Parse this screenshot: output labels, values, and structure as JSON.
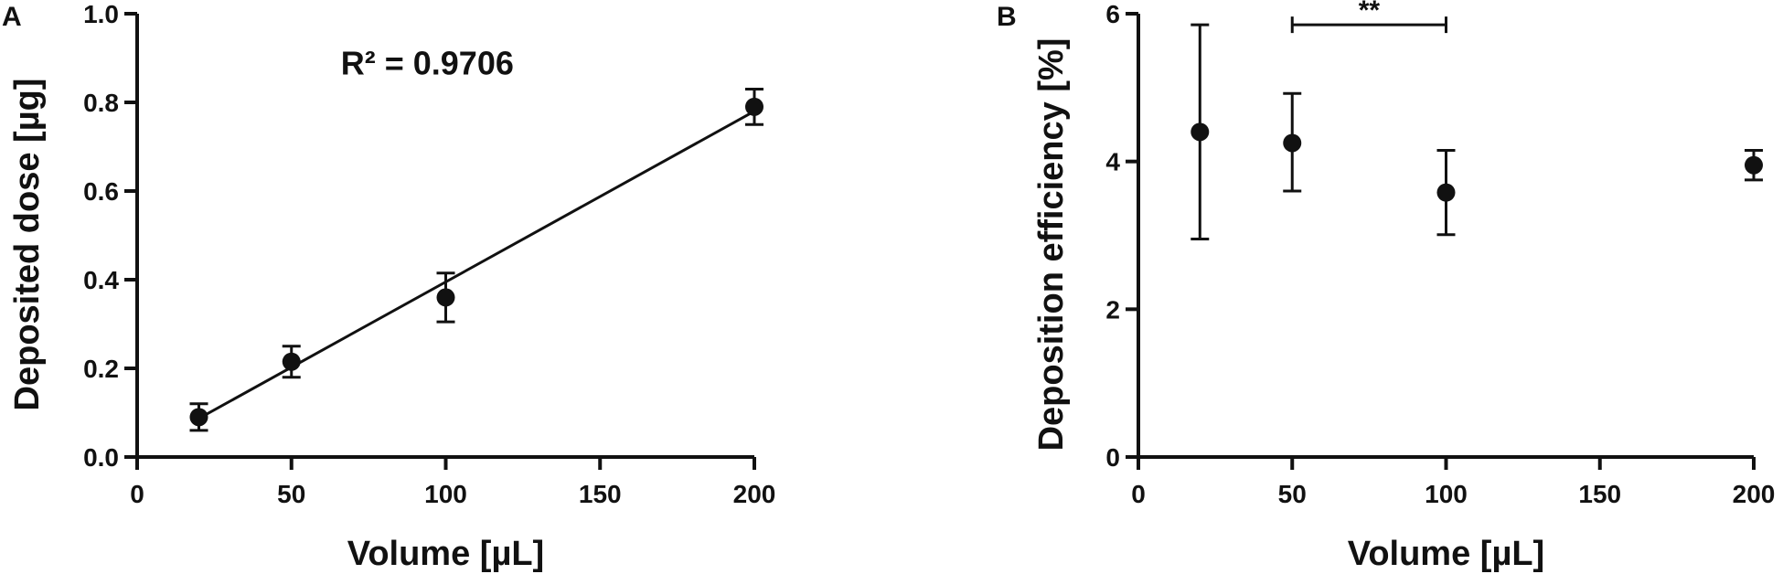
{
  "chart_data": [
    {
      "panel": "A",
      "type": "scatter",
      "xlabel": "Volume [µL]",
      "ylabel": "Deposited dose [µg]",
      "xlim": [
        0,
        200
      ],
      "ylim": [
        0,
        1.0
      ],
      "xticks": [
        "0",
        "50",
        "100",
        "150",
        "200"
      ],
      "yticks": [
        "0.0",
        "0.2",
        "0.4",
        "0.6",
        "0.8",
        "1.0"
      ],
      "points": [
        {
          "x": 20,
          "y": 0.09,
          "err": 0.03
        },
        {
          "x": 50,
          "y": 0.215,
          "err": 0.035
        },
        {
          "x": 100,
          "y": 0.36,
          "err": 0.055
        },
        {
          "x": 200,
          "y": 0.79,
          "err": 0.04
        }
      ],
      "fit_line": {
        "x": [
          20,
          200
        ],
        "y": [
          0.087,
          0.78
        ]
      },
      "annotation": "R² = 0.9706",
      "grid": false,
      "color": "#111111"
    },
    {
      "panel": "B",
      "type": "scatter",
      "xlabel": "Volume [µL]",
      "ylabel": "Deposition efficiency [%]",
      "xlim": [
        0,
        200
      ],
      "ylim": [
        0,
        6
      ],
      "xticks": [
        "0",
        "50",
        "100",
        "150",
        "200"
      ],
      "yticks": [
        "0",
        "2",
        "4",
        "6"
      ],
      "points": [
        {
          "x": 20,
          "y": 4.4,
          "err_low": 1.45,
          "err_high": 1.45
        },
        {
          "x": 50,
          "y": 4.25,
          "err_low": 0.65,
          "err_high": 0.67
        },
        {
          "x": 100,
          "y": 3.58,
          "err_low": 0.57,
          "err_high": 0.57
        },
        {
          "x": 200,
          "y": 3.95,
          "err_low": 0.2,
          "err_high": 0.2
        }
      ],
      "significance": {
        "x1": 50,
        "x2": 100,
        "y": 5.85,
        "label": "**"
      },
      "grid": false,
      "color": "#111111"
    }
  ]
}
